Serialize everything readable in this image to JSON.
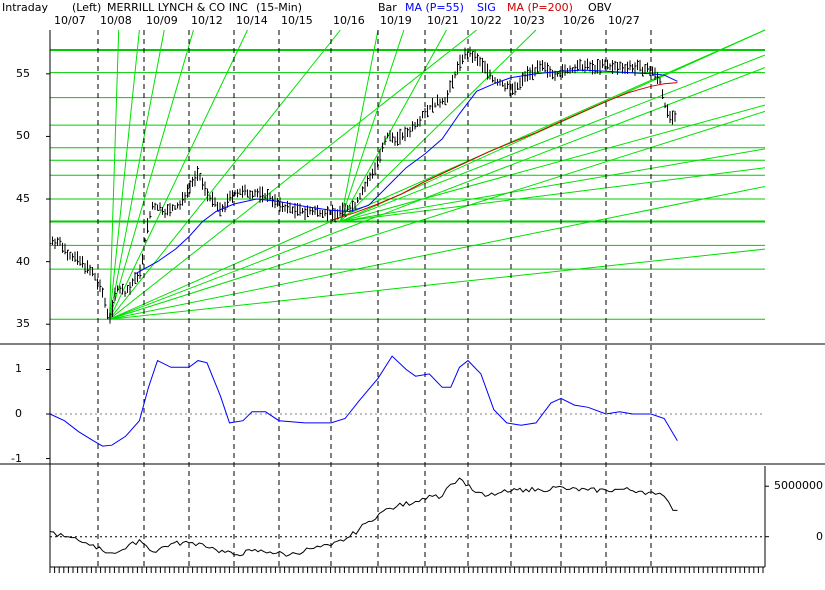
{
  "header": {
    "timeframe_label": "Intraday",
    "scale_label": "(Left)",
    "title": "MERRILL LYNCH & CO INC",
    "interval": "(15-Min)",
    "chart_style": "Bar",
    "ma55_label": "MA (P=55)",
    "sig_label": "SIG",
    "ma200_label": "MA (P=200)",
    "obv_label": "OBV"
  },
  "colors": {
    "price_bars": "#000000",
    "ma55": "#0000ff",
    "ma200": "#cc0000",
    "gann": "#00e000",
    "horizontal_levels": "#00cc00",
    "signal": "#0000ff",
    "obv": "#000000",
    "day_separator": "#000000",
    "zero_line": "#808080"
  },
  "chart_data": [
    {
      "type": "bar",
      "panel": "price",
      "x_kind": "trading-day index (15-minute bars)",
      "categories": [
        "10/07",
        "10/08",
        "10/09",
        "10/12",
        "10/14",
        "10/15",
        "10/16",
        "10/19",
        "10/21",
        "10/22",
        "10/23",
        "10/26",
        "10/27"
      ],
      "y_ticks": [
        35,
        40,
        45,
        50,
        55
      ],
      "ylim": [
        33.5,
        58.5
      ],
      "series": [
        {
          "name": "Price",
          "points": [
            [
              0,
              41.8
            ],
            [
              0.2,
              41.5
            ],
            [
              0.4,
              40.6
            ],
            [
              0.7,
              39.8
            ],
            [
              0.9,
              39.0
            ],
            [
              1.0,
              38.2
            ],
            [
              1.1,
              37.5
            ],
            [
              1.2,
              36.0
            ],
            [
              1.28,
              35.5
            ],
            [
              1.4,
              38.0
            ],
            [
              1.6,
              37.5
            ],
            [
              1.8,
              38.5
            ],
            [
              1.95,
              39.5
            ],
            [
              2.05,
              42.5
            ],
            [
              2.2,
              44.5
            ],
            [
              2.5,
              44.0
            ],
            [
              2.8,
              44.5
            ],
            [
              3.0,
              46.0
            ],
            [
              3.2,
              47.0
            ],
            [
              3.4,
              45.5
            ],
            [
              3.7,
              44.0
            ],
            [
              4.0,
              45.5
            ],
            [
              4.4,
              45.5
            ],
            [
              4.8,
              45.2
            ],
            [
              5.0,
              44.5
            ],
            [
              5.4,
              44.0
            ],
            [
              5.8,
              44.0
            ],
            [
              6.1,
              43.8
            ],
            [
              6.5,
              44.5
            ],
            [
              6.8,
              46.5
            ],
            [
              7.0,
              48.0
            ],
            [
              7.2,
              50.0
            ],
            [
              7.4,
              49.8
            ],
            [
              7.6,
              50.2
            ],
            [
              7.8,
              51.0
            ],
            [
              8.0,
              52.0
            ],
            [
              8.2,
              52.5
            ],
            [
              8.5,
              53.0
            ],
            [
              8.7,
              55.0
            ],
            [
              8.9,
              56.5
            ],
            [
              9.1,
              56.5
            ],
            [
              9.4,
              55.5
            ],
            [
              9.6,
              54.5
            ],
            [
              9.9,
              54.0
            ],
            [
              10.1,
              53.7
            ],
            [
              10.3,
              55.0
            ],
            [
              10.6,
              55.5
            ],
            [
              10.9,
              55.0
            ],
            [
              11.2,
              55.3
            ],
            [
              11.5,
              55.6
            ],
            [
              11.8,
              55.5
            ],
            [
              12.0,
              55.7
            ],
            [
              12.2,
              55.5
            ],
            [
              12.5,
              55.6
            ],
            [
              12.8,
              55.4
            ],
            [
              13.0,
              55.3
            ],
            [
              13.2,
              54.5
            ],
            [
              13.35,
              52.0
            ],
            [
              13.5,
              51.3
            ],
            [
              13.6,
              51.5
            ]
          ]
        },
        {
          "name": "MA (P=55)",
          "points": [
            [
              1.8,
              39.0
            ],
            [
              2.3,
              40.0
            ],
            [
              2.7,
              41.0
            ],
            [
              3.0,
              42.0
            ],
            [
              3.3,
              43.2
            ],
            [
              3.6,
              44.0
            ],
            [
              4.0,
              44.6
            ],
            [
              4.5,
              45.0
            ],
            [
              5.0,
              44.8
            ],
            [
              5.5,
              44.4
            ],
            [
              6.0,
              44.1
            ],
            [
              6.4,
              44.0
            ],
            [
              6.8,
              44.5
            ],
            [
              7.2,
              46.0
            ],
            [
              7.6,
              47.5
            ],
            [
              8.0,
              48.6
            ],
            [
              8.4,
              49.8
            ],
            [
              8.8,
              51.8
            ],
            [
              9.2,
              53.6
            ],
            [
              9.6,
              54.2
            ],
            [
              10.0,
              54.7
            ],
            [
              10.5,
              55.0
            ],
            [
              11.0,
              55.2
            ],
            [
              11.5,
              55.3
            ],
            [
              12.0,
              55.2
            ],
            [
              12.5,
              55.1
            ],
            [
              13.0,
              55.0
            ],
            [
              13.3,
              54.9
            ],
            [
              13.6,
              54.4
            ]
          ]
        },
        {
          "name": "MA (P=200)",
          "points": [
            [
              6.0,
              43.3
            ],
            [
              6.5,
              43.9
            ],
            [
              7.0,
              44.6
            ],
            [
              7.5,
              45.4
            ],
            [
              8.0,
              46.4
            ],
            [
              8.5,
              47.2
            ],
            [
              9.0,
              48.0
            ],
            [
              9.5,
              48.8
            ],
            [
              10.0,
              49.5
            ],
            [
              10.5,
              50.3
            ],
            [
              11.0,
              51.2
            ],
            [
              11.5,
              52.0
            ],
            [
              12.0,
              52.8
            ],
            [
              12.5,
              53.5
            ],
            [
              13.0,
              54.0
            ],
            [
              13.3,
              54.2
            ],
            [
              13.6,
              54.3
            ]
          ]
        }
      ],
      "horizontal_levels": [
        35.4,
        39.4,
        41.3,
        43.2,
        45.0,
        46.9,
        48.1,
        49.1,
        50.9,
        53.1,
        55.1,
        56.9
      ],
      "heavy_levels": [
        43.2,
        56.9
      ],
      "gann_fans": [
        {
          "origin": [
            1.25,
            35.4
          ],
          "targets": [
            [
              1.45,
              58.5
            ],
            [
              1.9,
              58.5
            ],
            [
              2.45,
              58.5
            ],
            [
              3.1,
              58.5
            ],
            [
              4.3,
              58.5
            ],
            [
              6.2,
              58.5
            ],
            [
              9.2,
              58.5
            ],
            [
              15.0,
              58.5
            ],
            [
              15.0,
              55.5
            ],
            [
              15.0,
              52.0
            ],
            [
              15.0,
              46.0
            ],
            [
              15.0,
              41.0
            ]
          ]
        },
        {
          "origin": [
            6.2,
            43.2
          ],
          "targets": [
            [
              7.0,
              58.5
            ],
            [
              7.55,
              58.5
            ],
            [
              8.5,
              58.5
            ],
            [
              10.5,
              58.5
            ],
            [
              15.0,
              58.5
            ],
            [
              15.0,
              56.5
            ],
            [
              15.0,
              52.5
            ],
            [
              15.0,
              49.0
            ],
            [
              15.0,
              47.5
            ]
          ]
        }
      ]
    },
    {
      "type": "line",
      "panel": "signal",
      "y_ticks": [
        -1,
        0,
        1
      ],
      "ylim": [
        -1.1,
        1.55
      ],
      "series": [
        {
          "name": "SIG",
          "points": [
            [
              0,
              0.0
            ],
            [
              0.3,
              -0.15
            ],
            [
              0.6,
              -0.4
            ],
            [
              0.9,
              -0.6
            ],
            [
              1.1,
              -0.72
            ],
            [
              1.3,
              -0.7
            ],
            [
              1.6,
              -0.5
            ],
            [
              1.9,
              -0.15
            ],
            [
              2.1,
              0.6
            ],
            [
              2.3,
              1.2
            ],
            [
              2.6,
              1.05
            ],
            [
              3.0,
              1.05
            ],
            [
              3.2,
              1.2
            ],
            [
              3.4,
              1.15
            ],
            [
              3.7,
              0.4
            ],
            [
              3.9,
              -0.2
            ],
            [
              4.2,
              -0.15
            ],
            [
              4.4,
              0.05
            ],
            [
              4.7,
              0.05
            ],
            [
              5.0,
              -0.15
            ],
            [
              5.5,
              -0.2
            ],
            [
              6.0,
              -0.2
            ],
            [
              6.3,
              -0.1
            ],
            [
              6.6,
              0.3
            ],
            [
              7.0,
              0.8
            ],
            [
              7.3,
              1.3
            ],
            [
              7.6,
              1.0
            ],
            [
              7.8,
              0.85
            ],
            [
              8.1,
              0.9
            ],
            [
              8.4,
              0.6
            ],
            [
              8.6,
              0.6
            ],
            [
              8.8,
              1.05
            ],
            [
              9.0,
              1.2
            ],
            [
              9.3,
              0.9
            ],
            [
              9.6,
              0.1
            ],
            [
              9.9,
              -0.2
            ],
            [
              10.2,
              -0.25
            ],
            [
              10.5,
              -0.2
            ],
            [
              10.8,
              0.25
            ],
            [
              11.0,
              0.35
            ],
            [
              11.3,
              0.2
            ],
            [
              11.6,
              0.15
            ],
            [
              12.0,
              0.0
            ],
            [
              12.3,
              0.05
            ],
            [
              12.6,
              0.0
            ],
            [
              13.0,
              0.0
            ],
            [
              13.3,
              -0.1
            ],
            [
              13.6,
              -0.6
            ]
          ]
        }
      ]
    },
    {
      "type": "line",
      "panel": "obv",
      "y_ticks": [
        0,
        5000000
      ],
      "y_tick_labels": [
        "0",
        "5000000"
      ],
      "ylim": [
        -3000000,
        7000000
      ],
      "series": [
        {
          "name": "OBV",
          "points": [
            [
              0,
              500000
            ],
            [
              0.3,
              0
            ],
            [
              0.6,
              -400000
            ],
            [
              0.9,
              -800000
            ],
            [
              1.1,
              -1400000
            ],
            [
              1.3,
              -1600000
            ],
            [
              1.6,
              -1200000
            ],
            [
              1.9,
              -300000
            ],
            [
              2.2,
              -1500000
            ],
            [
              2.6,
              -700000
            ],
            [
              3.0,
              -600000
            ],
            [
              3.3,
              -700000
            ],
            [
              3.6,
              -1300000
            ],
            [
              4.0,
              -1800000
            ],
            [
              4.4,
              -1400000
            ],
            [
              4.8,
              -1500000
            ],
            [
              5.2,
              -1800000
            ],
            [
              5.6,
              -1200000
            ],
            [
              6.0,
              -900000
            ],
            [
              6.4,
              0
            ],
            [
              6.8,
              1500000
            ],
            [
              7.1,
              2500000
            ],
            [
              7.4,
              3000000
            ],
            [
              7.8,
              3500000
            ],
            [
              8.1,
              4100000
            ],
            [
              8.4,
              4000000
            ],
            [
              8.6,
              5200000
            ],
            [
              8.8,
              5800000
            ],
            [
              9.1,
              4600000
            ],
            [
              9.4,
              4000000
            ],
            [
              9.7,
              4300000
            ],
            [
              10.0,
              4500000
            ],
            [
              10.3,
              4700000
            ],
            [
              10.6,
              4600000
            ],
            [
              10.9,
              4900000
            ],
            [
              11.2,
              4700000
            ],
            [
              11.6,
              4600000
            ],
            [
              12.0,
              4600000
            ],
            [
              12.4,
              4700000
            ],
            [
              12.8,
              4500000
            ],
            [
              13.1,
              4200000
            ],
            [
              13.3,
              4000000
            ],
            [
              13.5,
              2600000
            ],
            [
              13.6,
              2600000
            ]
          ]
        }
      ]
    }
  ]
}
